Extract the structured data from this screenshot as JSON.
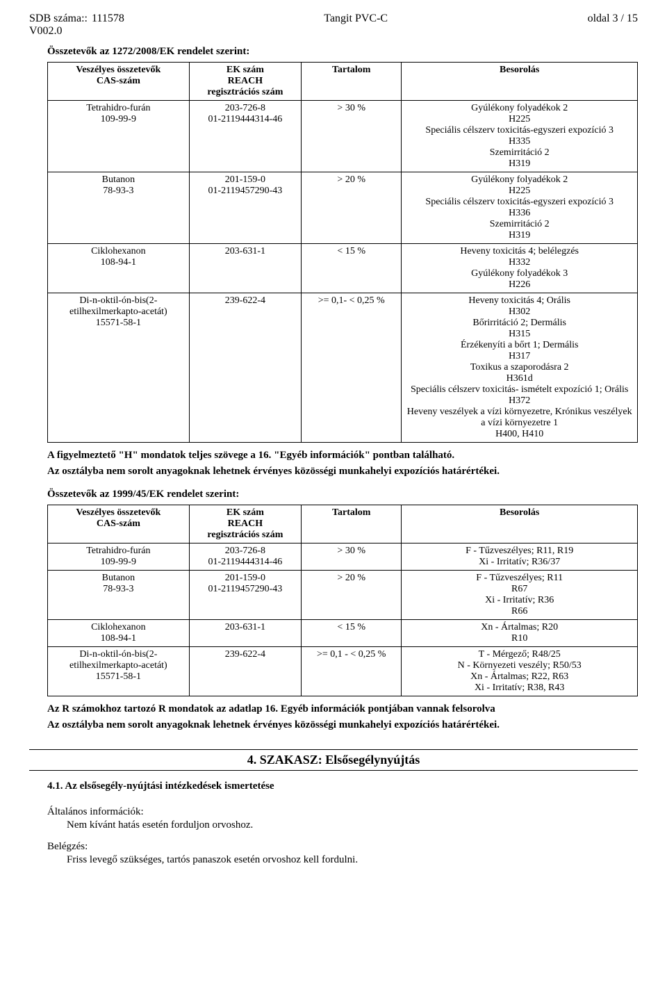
{
  "header": {
    "sdb_label": "SDB száma::",
    "sdb_value": "111578",
    "version": "V002.0",
    "product": "Tangit PVC-C",
    "page": "oldal 3 / 15"
  },
  "section1272": {
    "title": "Összetevők az 1272/2008/EK rendelet szerint:",
    "headers": {
      "c1a": "Veszélyes összetevők",
      "c1b": "CAS-szám",
      "c2a": "EK szám",
      "c2b": "REACH",
      "c2c": "regisztrációs szám",
      "c3": "Tartalom",
      "c4": "Besorolás"
    },
    "rows": [
      {
        "sub": [
          "Tetrahidro-furán",
          "109-99-9"
        ],
        "ek": [
          "203-726-8",
          "01-2119444314-46"
        ],
        "tart": ">  30 %",
        "bes": [
          "Gyúlékony folyadékok 2",
          "H225",
          "Speciális célszerv toxicitás-egyszeri expozíció 3",
          "H335",
          "Szemirritáció 2",
          "H319"
        ]
      },
      {
        "sub": [
          "Butanon",
          "78-93-3"
        ],
        "ek": [
          "201-159-0",
          "01-2119457290-43"
        ],
        "tart": ">  20 %",
        "bes": [
          "Gyúlékony folyadékok 2",
          "H225",
          "Speciális célszerv toxicitás-egyszeri expozíció 3",
          "H336",
          "Szemirritáció 2",
          "H319"
        ]
      },
      {
        "sub": [
          "Ciklohexanon",
          "108-94-1"
        ],
        "ek": [
          "203-631-1"
        ],
        "tart": "<  15 %",
        "bes": [
          "Heveny toxicitás 4;  belélegzés",
          "H332",
          "Gyúlékony folyadékok 3",
          "H226"
        ]
      },
      {
        "sub": [
          "Di-n-oktil-ón-bis(2-etilhexilmerkapto-acetát)",
          "15571-58-1"
        ],
        "ek": [
          "239-622-4"
        ],
        "tart": ">=   0,1- <   0,25 %",
        "bes": [
          "Heveny toxicitás 4;  Orális",
          "H302",
          "Bőrirritáció 2;  Dermális",
          "H315",
          "Érzékenyíti a bőrt 1;  Dermális",
          "H317",
          "Toxikus a szaporodásra 2",
          "H361d",
          "Speciális célszerv toxicitás- ismételt expozíció 1;  Orális",
          "H372",
          "Heveny veszélyek a vízi környezetre, Krónikus veszélyek a vízi környezetre 1",
          "H400, H410"
        ]
      }
    ]
  },
  "note1272_a": "A figyelmeztető \"H\" mondatok teljes szövege a 16. \"Egyéb információk\" pontban található.",
  "note1272_b": "Az osztályba nem sorolt anyagoknak lehetnek érvényes közösségi munkahelyi expozíciós határértékei.",
  "section1999": {
    "title": "Összetevők az 1999/45/EK rendelet szerint:",
    "headers": {
      "c1a": "Veszélyes összetevők",
      "c1b": "CAS-szám",
      "c2a": "EK szám",
      "c2b": "REACH",
      "c2c": "regisztrációs szám",
      "c3": "Tartalom",
      "c4": "Besorolás"
    },
    "rows": [
      {
        "sub": [
          "Tetrahidro-furán",
          "109-99-9"
        ],
        "ek": [
          "203-726-8",
          "01-2119444314-46"
        ],
        "tart": ">  30 %",
        "bes": [
          "F - Tűzveszélyes;  R11, R19",
          "Xi - Irritatív;  R36/37"
        ]
      },
      {
        "sub": [
          "Butanon",
          "78-93-3"
        ],
        "ek": [
          "201-159-0",
          "01-2119457290-43"
        ],
        "tart": ">  20 %",
        "bes": [
          "F - Tűzveszélyes;  R11",
          "R67",
          "Xi - Irritatív;  R36",
          "R66"
        ]
      },
      {
        "sub": [
          "Ciklohexanon",
          "108-94-1"
        ],
        "ek": [
          "203-631-1"
        ],
        "tart": "<  15  %",
        "bes": [
          "Xn - Ártalmas;  R20",
          "R10"
        ]
      },
      {
        "sub": [
          "Di-n-oktil-ón-bis(2-etilhexilmerkapto-acetát)",
          "15571-58-1"
        ],
        "ek": [
          "239-622-4"
        ],
        "tart": ">=   0,1 - <   0,25  %",
        "bes": [
          "T - Mérgező;  R48/25",
          "N - Környezeti veszély;  R50/53",
          "Xn - Ártalmas;  R22, R63",
          "Xi - Irritatív;  R38, R43"
        ]
      }
    ]
  },
  "note1999_a": "Az R számokhoz tartozó R mondatok az adatlap 16. Egyéb információk pontjában vannak felsorolva",
  "note1999_b": "Az osztályba nem sorolt anyagoknak lehetnek érvényes közösségi munkahelyi expozíciós határértékei.",
  "section4": {
    "heading": "4. SZAKASZ: Elsősegélynyújtás",
    "sub41": "4.1. Az elsősegély-nyújtási intézkedések ismertetése",
    "gen_label": "Általános információk:",
    "gen_text": "Nem kívánt hatás esetén forduljon orvoshoz.",
    "inhale_label": "Belégzés:",
    "inhale_text": "Friss levegő szükséges, tartós panaszok esetén orvoshoz kell fordulni."
  }
}
